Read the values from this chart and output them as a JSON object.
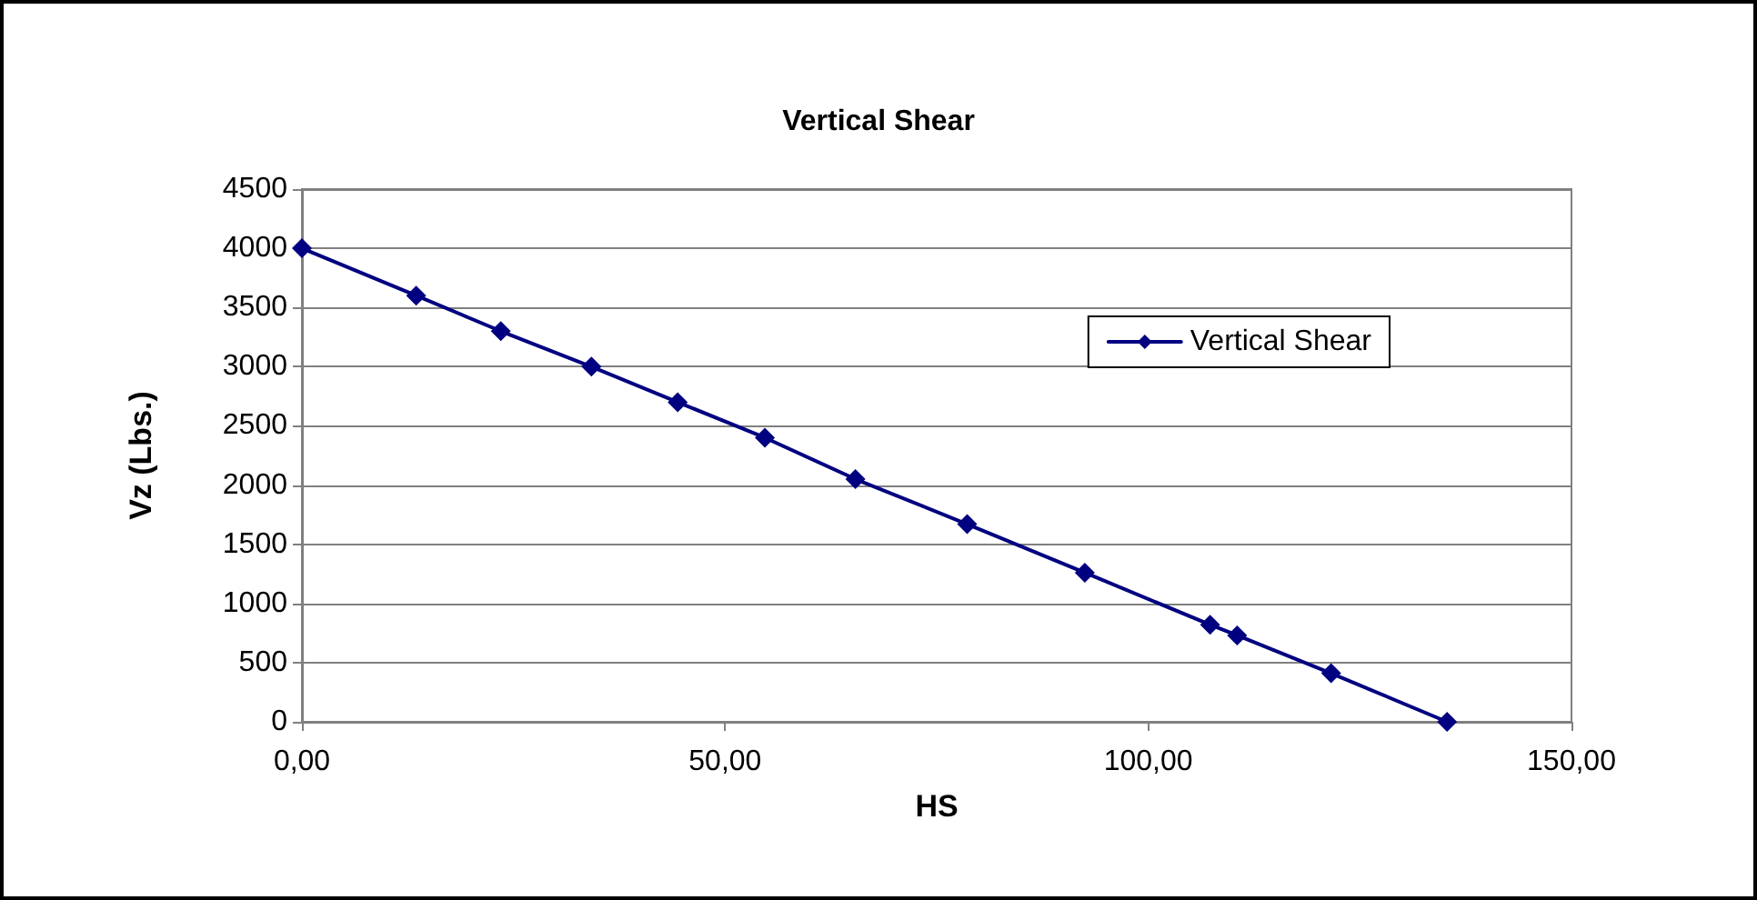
{
  "chart_data": {
    "type": "line",
    "title": "Vertical Shear",
    "xlabel": "HS",
    "ylabel": "Vz (Lbs.)",
    "x": [
      0,
      13.5,
      23.5,
      34.2,
      44.4,
      54.7,
      65.4,
      78.6,
      92.5,
      107.3,
      110.5,
      121.6,
      135.3
    ],
    "series": [
      {
        "name": "Vertical Shear",
        "color": "#000080",
        "values": [
          4000,
          3600,
          3300,
          3000,
          2700,
          2400,
          2050,
          1670,
          1260,
          820,
          730,
          410,
          0
        ]
      }
    ],
    "xlim": [
      0,
      150
    ],
    "xticks": [
      {
        "value": 0,
        "label": "0,00"
      },
      {
        "value": 50,
        "label": "50,00"
      },
      {
        "value": 100,
        "label": "100,00"
      },
      {
        "value": 150,
        "label": "150,00"
      }
    ],
    "ylim": [
      0,
      4500
    ],
    "yticks": [
      0,
      500,
      1000,
      1500,
      2000,
      2500,
      3000,
      3500,
      4000,
      4500
    ],
    "grid": "y",
    "legend": "top right",
    "marker": "diamond",
    "line_style": "solid"
  }
}
